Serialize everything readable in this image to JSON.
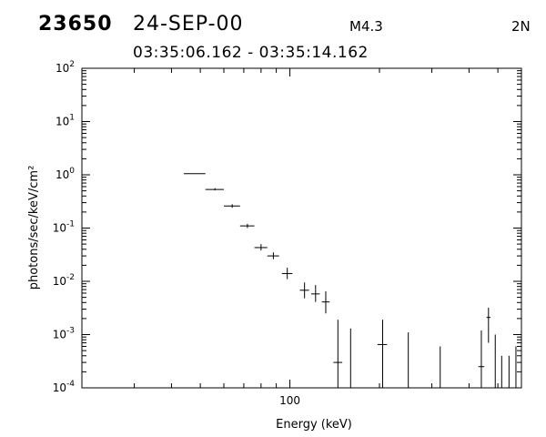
{
  "header": {
    "flare_id": "23650",
    "date": "24-SEP-00",
    "goes_class": "M4.3",
    "location": "2N",
    "time_range": "03:35:06.162 - 03:35:14.162"
  },
  "chart_data": {
    "type": "scatter",
    "title": "",
    "xlabel": "Energy (keV)",
    "ylabel": "photons/sec/keV/cm²",
    "xscale": "log",
    "yscale": "log",
    "xlim": [
      20,
      600
    ],
    "ylim": [
      0.0001,
      100
    ],
    "x_tick_labels": [
      {
        "value": 100,
        "label": "100"
      }
    ],
    "y_tick_labels": [
      {
        "value": 0.0001,
        "base": "10",
        "exp": "-4"
      },
      {
        "value": 0.001,
        "base": "10",
        "exp": "-3"
      },
      {
        "value": 0.01,
        "base": "10",
        "exp": "-2"
      },
      {
        "value": 0.1,
        "base": "10",
        "exp": "-1"
      },
      {
        "value": 1,
        "base": "10",
        "exp": "0"
      },
      {
        "value": 10,
        "base": "10",
        "exp": "1"
      },
      {
        "value": 100,
        "base": "10",
        "exp": "2"
      }
    ],
    "grid": false,
    "series": [
      {
        "points": [
          {
            "x": 48,
            "y": 1.05,
            "xlo": 44,
            "xhi": 52,
            "ylo": 1.05,
            "yhi": 1.05
          },
          {
            "x": 56,
            "y": 0.53,
            "xlo": 52,
            "xhi": 60,
            "ylo": 0.51,
            "yhi": 0.56
          },
          {
            "x": 64,
            "y": 0.26,
            "xlo": 60,
            "xhi": 68,
            "ylo": 0.24,
            "yhi": 0.28
          },
          {
            "x": 72,
            "y": 0.11,
            "xlo": 68,
            "xhi": 76,
            "ylo": 0.1,
            "yhi": 0.12
          },
          {
            "x": 80,
            "y": 0.043,
            "xlo": 76,
            "xhi": 84,
            "ylo": 0.038,
            "yhi": 0.05
          },
          {
            "x": 88,
            "y": 0.03,
            "xlo": 84,
            "xhi": 92,
            "ylo": 0.026,
            "yhi": 0.035
          },
          {
            "x": 98,
            "y": 0.014,
            "xlo": 94,
            "xhi": 102,
            "ylo": 0.011,
            "yhi": 0.018
          },
          {
            "x": 112,
            "y": 0.0068,
            "xlo": 108,
            "xhi": 116,
            "ylo": 0.0048,
            "yhi": 0.0095
          },
          {
            "x": 122,
            "y": 0.0058,
            "xlo": 118,
            "xhi": 126,
            "ylo": 0.0041,
            "yhi": 0.0085
          },
          {
            "x": 132,
            "y": 0.0041,
            "xlo": 128,
            "xhi": 136,
            "ylo": 0.0025,
            "yhi": 0.0065
          },
          {
            "x": 145,
            "y": 0.0003,
            "xlo": 140,
            "xhi": 150,
            "ylo": 0.0001,
            "yhi": 0.0019
          },
          {
            "x": 160,
            "y": null,
            "ylo": 0.0001,
            "yhi": 0.0013
          },
          {
            "x": 205,
            "y": 0.00065,
            "xlo": 197,
            "xhi": 212,
            "ylo": 0.0001,
            "yhi": 0.0019
          },
          {
            "x": 250,
            "y": null,
            "ylo": 0.0001,
            "yhi": 0.0011
          },
          {
            "x": 320,
            "y": null,
            "ylo": 0.0001,
            "yhi": 0.0006
          },
          {
            "x": 440,
            "y": 0.00025,
            "xlo": 430,
            "xhi": 450,
            "ylo": 0.0001,
            "yhi": 0.0012
          },
          {
            "x": 465,
            "y": 0.0021,
            "xlo": 458,
            "xhi": 472,
            "ylo": 0.0007,
            "yhi": 0.0032
          },
          {
            "x": 490,
            "y": null,
            "ylo": 0.0001,
            "yhi": 0.001
          },
          {
            "x": 515,
            "y": null,
            "ylo": 0.0001,
            "yhi": 0.0004
          },
          {
            "x": 545,
            "y": null,
            "ylo": 0.0001,
            "yhi": 0.0004
          },
          {
            "x": 575,
            "y": null,
            "ylo": 0.0001,
            "yhi": 0.0006
          }
        ]
      }
    ]
  }
}
